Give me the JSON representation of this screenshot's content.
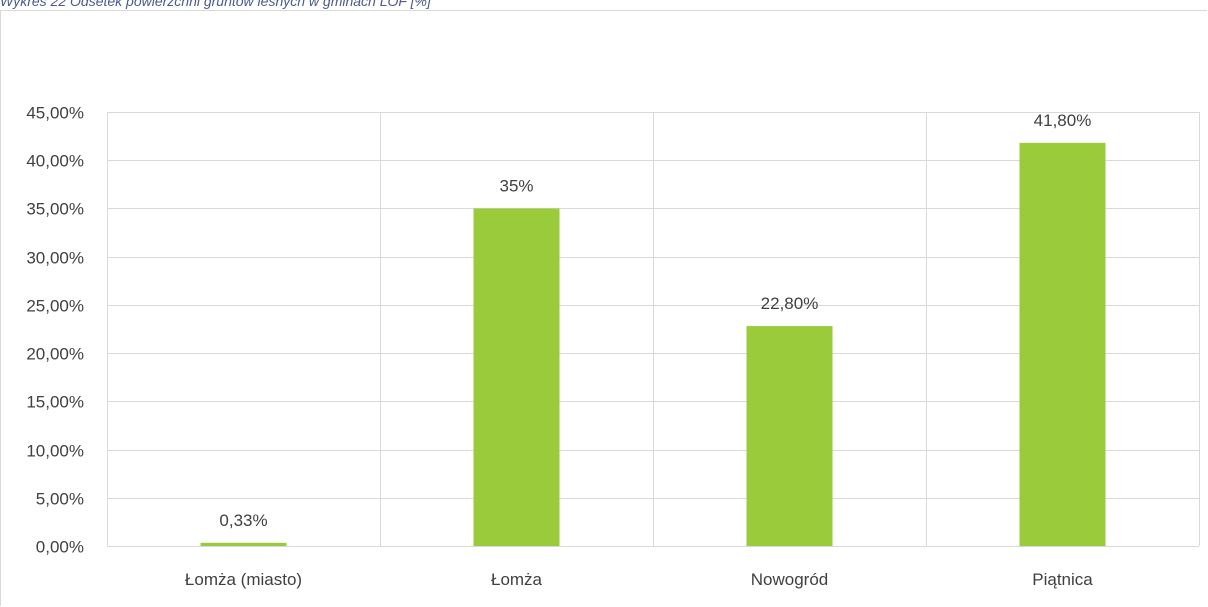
{
  "caption": "Wykres 22 Odsetek powierzchni gruntów leśnych w gminach LOF [%]",
  "chart_data": {
    "type": "bar",
    "title": "",
    "xlabel": "",
    "ylabel": "",
    "categories": [
      "Łomża (miasto)",
      "Łomża",
      "Nowogród",
      "Piątnica"
    ],
    "values": [
      0.33,
      35,
      22.8,
      41.8
    ],
    "data_labels": [
      "0,33%",
      "35%",
      "22,80%",
      "41,80%"
    ],
    "ylim": [
      0,
      45
    ],
    "yticks": [
      0,
      5,
      10,
      15,
      20,
      25,
      30,
      35,
      40,
      45
    ],
    "ytick_labels": [
      "0,00%",
      "5,00%",
      "10,00%",
      "15,00%",
      "20,00%",
      "25,00%",
      "30,00%",
      "35,00%",
      "40,00%",
      "45,00%"
    ],
    "grid": true,
    "legend": "none",
    "bar_color": "#9acb3b",
    "grid_color": "#d9d9d9"
  }
}
